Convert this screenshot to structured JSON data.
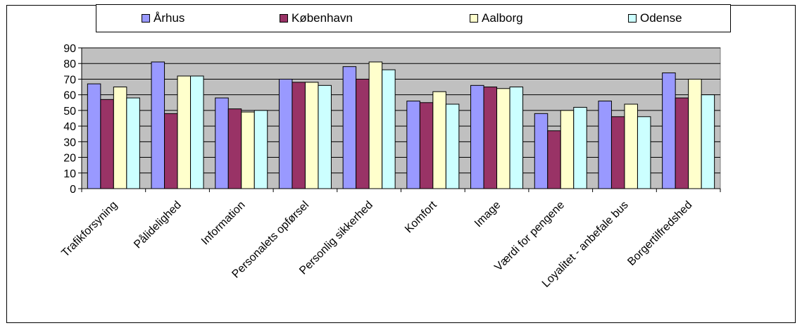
{
  "chart_data": {
    "type": "bar",
    "categories": [
      "Trafikforsyning",
      "Pålidelighed",
      "Information",
      "Personalets opførsel",
      "Personlig sikkerhed",
      "Komfort",
      "Image",
      "Værdi for pengene",
      "Loyalitet - anbefale bus",
      "Borgertilfredshed"
    ],
    "series": [
      {
        "name": "Århus",
        "color": "#9999ff",
        "values": [
          67,
          81,
          58,
          70,
          78,
          56,
          66,
          48,
          56,
          74
        ]
      },
      {
        "name": "København",
        "color": "#993366",
        "values": [
          57,
          48,
          51,
          68,
          70,
          55,
          65,
          37,
          46,
          58
        ]
      },
      {
        "name": "Aalborg",
        "color": "#ffffcc",
        "values": [
          65,
          72,
          49,
          68,
          81,
          62,
          64,
          50,
          54,
          70
        ]
      },
      {
        "name": "Odense",
        "color": "#ccffff",
        "values": [
          58,
          72,
          50,
          66,
          76,
          54,
          65,
          52,
          46,
          60
        ]
      }
    ],
    "ylim": [
      0,
      90
    ],
    "yticks": [
      "0",
      "10",
      "20",
      "30",
      "40",
      "50",
      "60",
      "70",
      "80",
      "90"
    ],
    "grid": true,
    "legend_position": "top",
    "plot_background": "#c0c0c0"
  }
}
